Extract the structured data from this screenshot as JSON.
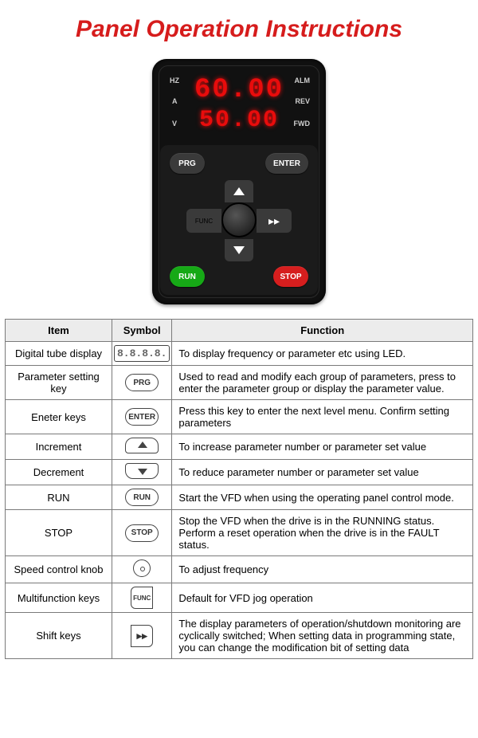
{
  "title": {
    "text": "Panel Operation Instructions",
    "color": "#d61c1c",
    "fontsize": 30
  },
  "panel": {
    "readout1": "60.00",
    "readout2": "50.00",
    "labels": {
      "hz": "HZ",
      "a": "A",
      "v": "V",
      "alm": "ALM",
      "rev": "REV",
      "fwd": "FWD"
    },
    "buttons": {
      "prg": "PRG",
      "enter": "ENTER",
      "func": "FUNC",
      "run": "RUN",
      "stop": "STOP"
    }
  },
  "table": {
    "headers": {
      "item": "Item",
      "symbol": "Symbol",
      "function": "Function"
    },
    "rows": [
      {
        "item": "Digital tube display",
        "symbol_type": "seg8",
        "symbol_text": "8.8.8.8.",
        "function": "To display frequency or parameter etc using LED."
      },
      {
        "item": "Parameter setting key",
        "symbol_type": "badge",
        "symbol_text": "PRG",
        "function": "Used to read and modify each group of parameters, press to enter the parameter group or display the parameter value."
      },
      {
        "item": "Eneter keys",
        "symbol_type": "badge",
        "symbol_text": "ENTER",
        "function": "Press this key to enter the next level menu. Confirm setting parameters"
      },
      {
        "item": "Increment",
        "symbol_type": "arrow-up",
        "symbol_text": "",
        "function": "To increase parameter number or parameter set value"
      },
      {
        "item": "Decrement",
        "symbol_type": "arrow-down",
        "symbol_text": "",
        "function": "To reduce parameter number or parameter set value"
      },
      {
        "item": "RUN",
        "symbol_type": "badge",
        "symbol_text": "RUN",
        "function": "Start the VFD when using the operating panel control mode."
      },
      {
        "item": "STOP",
        "symbol_type": "badge",
        "symbol_text": "STOP",
        "function": "Stop the VFD when the drive is in the RUNNING status. Perform a reset operation when the drive is in the FAULT status."
      },
      {
        "item": "Speed control knob",
        "symbol_type": "knob",
        "symbol_text": "",
        "function": "To adjust frequency"
      },
      {
        "item": "Multifunction keys",
        "symbol_type": "func",
        "symbol_text": "FUNC",
        "function": "Default for VFD jog operation"
      },
      {
        "item": "Shift keys",
        "symbol_type": "shift",
        "symbol_text": "▸▸",
        "function": "The display parameters of operation/shutdown monitoring are cyclically switched; When setting data in programming state, you can change the modification bit of setting data"
      }
    ]
  }
}
